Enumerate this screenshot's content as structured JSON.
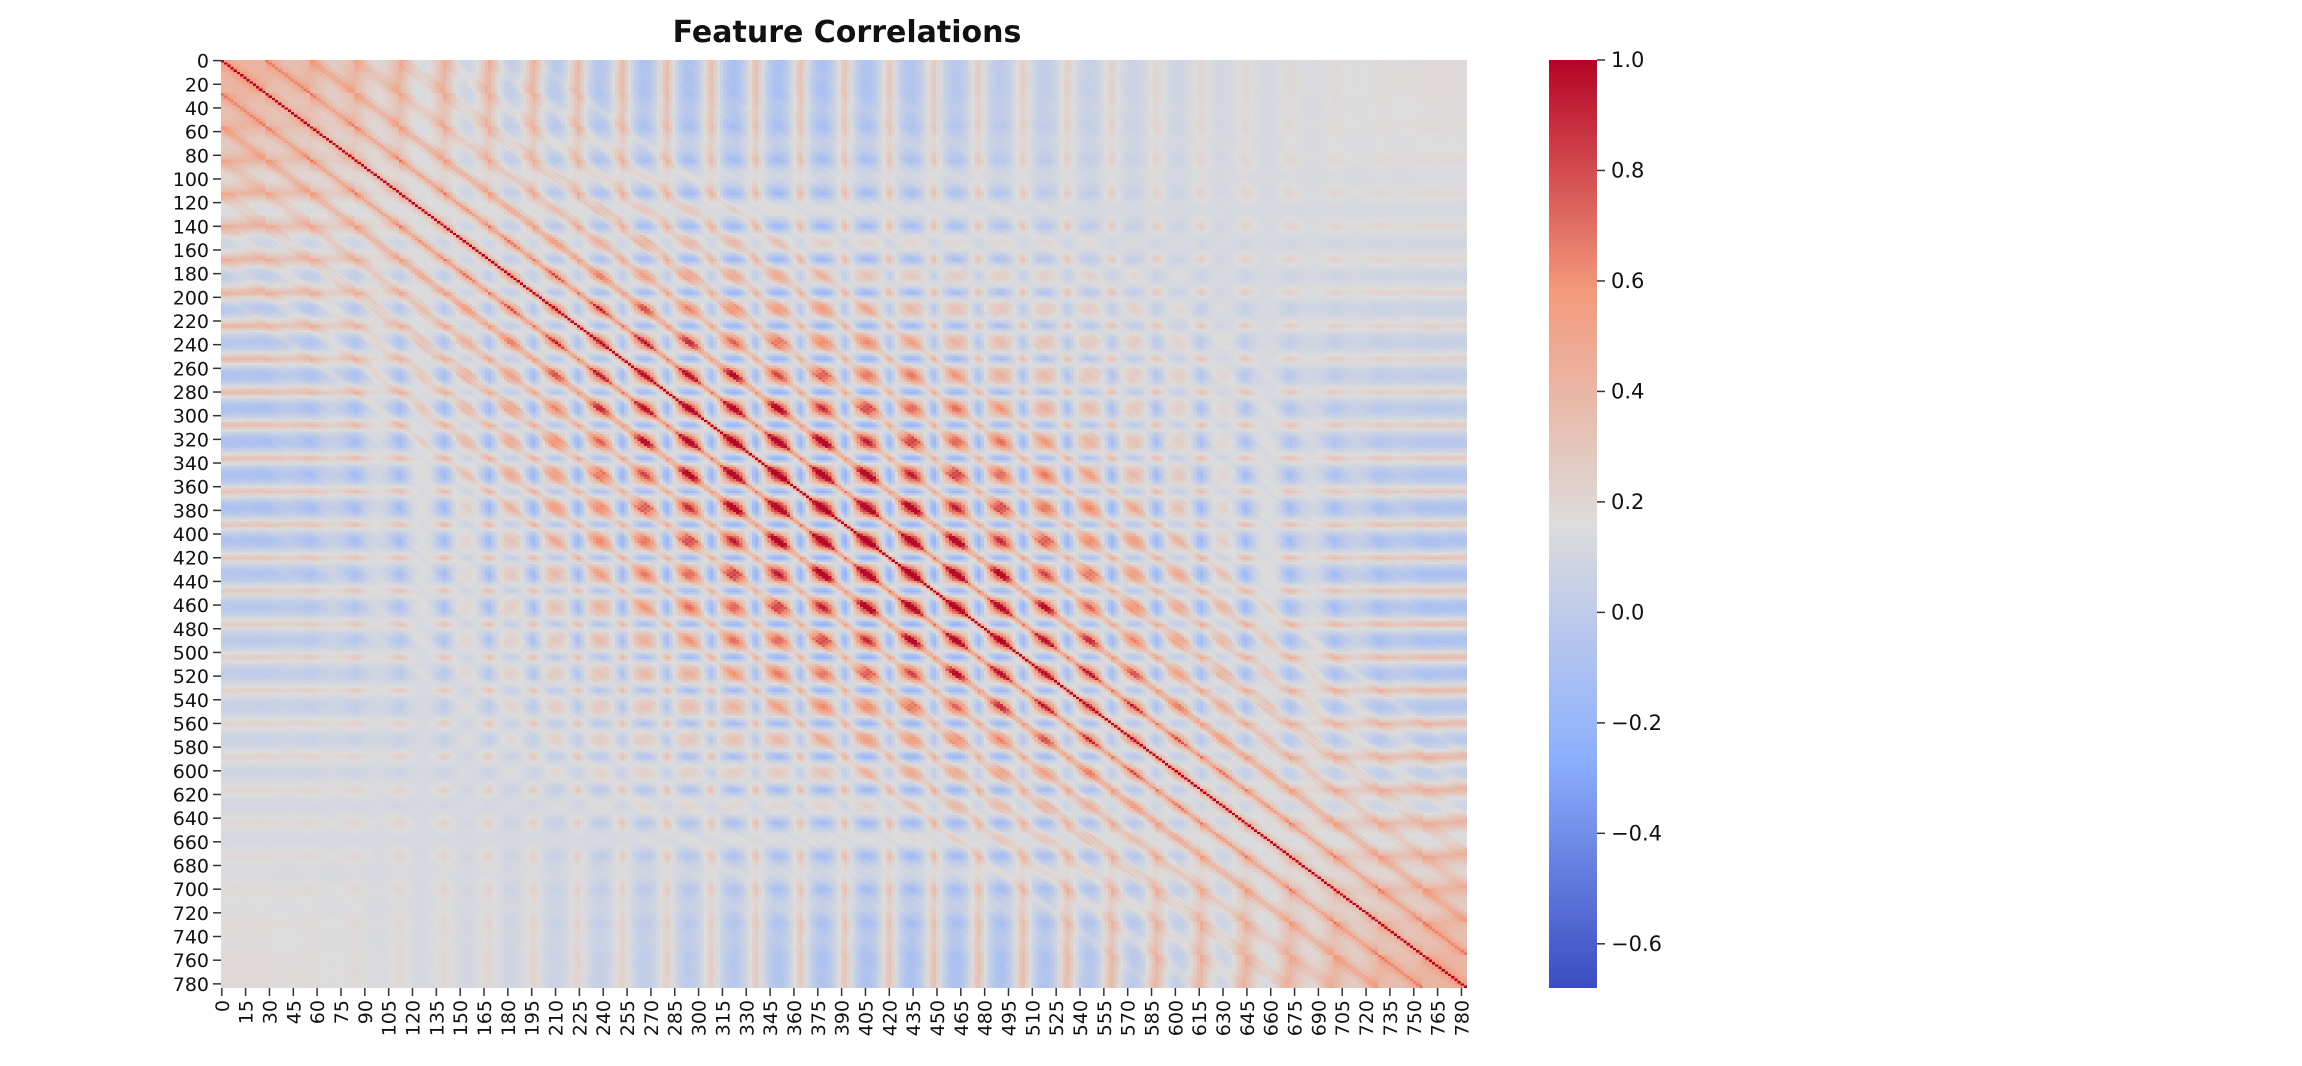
{
  "chart_data": {
    "type": "heatmap",
    "title": "Feature Correlations",
    "xlabel": "",
    "ylabel": "",
    "n_features": 784,
    "x_ticks": [
      0,
      15,
      30,
      45,
      60,
      75,
      90,
      105,
      120,
      135,
      150,
      165,
      180,
      195,
      210,
      225,
      240,
      255,
      270,
      285,
      300,
      315,
      330,
      345,
      360,
      375,
      390,
      405,
      420,
      435,
      450,
      465,
      480,
      495,
      510,
      525,
      540,
      555,
      570,
      585,
      600,
      615,
      630,
      645,
      660,
      675,
      690,
      705,
      720,
      735,
      750,
      765,
      780
    ],
    "y_ticks": [
      0,
      20,
      40,
      60,
      80,
      100,
      120,
      140,
      160,
      180,
      200,
      220,
      240,
      260,
      280,
      300,
      320,
      340,
      360,
      380,
      400,
      420,
      440,
      460,
      480,
      500,
      520,
      540,
      560,
      580,
      600,
      620,
      640,
      660,
      680,
      700,
      720,
      740,
      760,
      780
    ],
    "colorbar": {
      "colormap": "coolwarm",
      "range": [
        -0.68,
        1.0
      ],
      "ticks": [
        1.0,
        0.8,
        0.6,
        0.4,
        0.2,
        0.0,
        -0.2,
        -0.4,
        -0.6
      ],
      "tick_labels": [
        "1.0",
        "0.8",
        "0.6",
        "0.4",
        "0.2",
        "0.0",
        "−0.2",
        "−0.4",
        "−0.6"
      ]
    },
    "grid": false,
    "pattern": {
      "diagonal": 1.0,
      "block_period": 28,
      "description_visible": "periodic block structure of 28x28 pixel-feature correlations with strong positive diagonal"
    }
  }
}
